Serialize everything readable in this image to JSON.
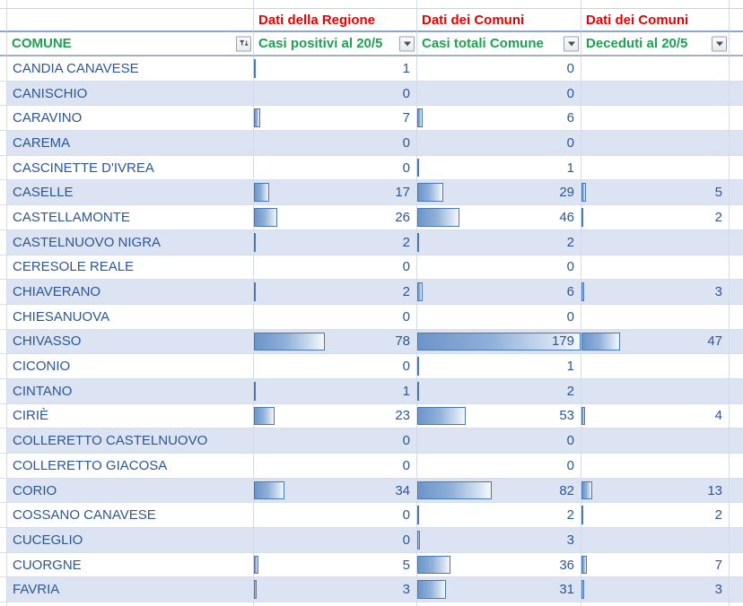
{
  "sheet": {
    "group_headers": {
      "positivi": "Dati della Regione",
      "totali": "Dati dei Comuni",
      "deceduti": "Dati dei Comuni"
    },
    "columns": {
      "comune": "COMUNE",
      "positivi": "Casi positivi al 20/5",
      "totali": "Casi totali Comune",
      "deceduti": "Deceduti al 20/5"
    },
    "icons": {
      "comune_header": "sort-filter-icon",
      "value_headers": "filter-dropdown-icon"
    },
    "databar_scale_max": 179,
    "colors": {
      "group_header_text": "#e60000",
      "column_header_text": "#1ea152",
      "cell_text": "#2d5694",
      "band_fill": "#dce4f3",
      "databar_border": "#4a77b5",
      "databar_fill": "#6b95c9"
    },
    "rows": [
      {
        "comune": "CANDIA CANAVESE",
        "positivi": 1,
        "totali": 0,
        "deceduti": null
      },
      {
        "comune": "CANISCHIO",
        "positivi": 0,
        "totali": 0,
        "deceduti": null
      },
      {
        "comune": "CARAVINO",
        "positivi": 7,
        "totali": 6,
        "deceduti": null
      },
      {
        "comune": "CAREMA",
        "positivi": 0,
        "totali": 0,
        "deceduti": null
      },
      {
        "comune": "CASCINETTE D'IVREA",
        "positivi": 0,
        "totali": 1,
        "deceduti": null
      },
      {
        "comune": "CASELLE",
        "positivi": 17,
        "totali": 29,
        "deceduti": 5
      },
      {
        "comune": "CASTELLAMONTE",
        "positivi": 26,
        "totali": 46,
        "deceduti": 2
      },
      {
        "comune": "CASTELNUOVO NIGRA",
        "positivi": 2,
        "totali": 2,
        "deceduti": null
      },
      {
        "comune": "CERESOLE REALE",
        "positivi": 0,
        "totali": 0,
        "deceduti": null
      },
      {
        "comune": "CHIAVERANO",
        "positivi": 2,
        "totali": 6,
        "deceduti": 3
      },
      {
        "comune": "CHIESANUOVA",
        "positivi": 0,
        "totali": 0,
        "deceduti": null
      },
      {
        "comune": "CHIVASSO",
        "positivi": 78,
        "totali": 179,
        "deceduti": 47
      },
      {
        "comune": "CICONIO",
        "positivi": 0,
        "totali": 1,
        "deceduti": null
      },
      {
        "comune": "CINTANO",
        "positivi": 1,
        "totali": 2,
        "deceduti": null
      },
      {
        "comune": "CIRIÈ",
        "positivi": 23,
        "totali": 53,
        "deceduti": 4
      },
      {
        "comune": "COLLERETTO CASTELNUOVO",
        "positivi": 0,
        "totali": 0,
        "deceduti": null
      },
      {
        "comune": "COLLERETTO GIACOSA",
        "positivi": 0,
        "totali": 0,
        "deceduti": null
      },
      {
        "comune": "CORIO",
        "positivi": 34,
        "totali": 82,
        "deceduti": 13
      },
      {
        "comune": "COSSANO CANAVESE",
        "positivi": 0,
        "totali": 2,
        "deceduti": 2
      },
      {
        "comune": "CUCEGLIO",
        "positivi": 0,
        "totali": 3,
        "deceduti": null
      },
      {
        "comune": "CUORGNE",
        "positivi": 5,
        "totali": 36,
        "deceduti": 7
      },
      {
        "comune": "FAVRIA",
        "positivi": 3,
        "totali": 31,
        "deceduti": 3
      }
    ]
  }
}
